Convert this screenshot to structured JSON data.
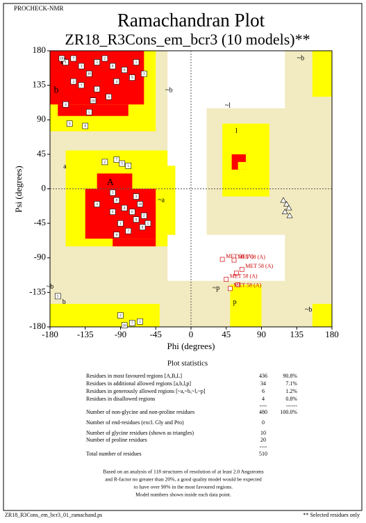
{
  "header": "PROCHECK-NMR",
  "chart_data": {
    "type": "scatter",
    "title": "Ramachandran Plot",
    "subtitle": "ZR18_R3Cons_em_bcr3 (10 models)**",
    "x_label": "Phi (degrees)",
    "y_label": "Psi (degrees)",
    "xlim": [
      -180,
      180
    ],
    "ylim": [
      -180,
      180
    ],
    "xticks": [
      -180,
      -135,
      -90,
      -45,
      0,
      45,
      90,
      135,
      180
    ],
    "yticks": [
      -180,
      -135,
      -90,
      -45,
      0,
      45,
      90,
      135,
      180
    ],
    "region_labels": [
      "B",
      "b",
      "A",
      "a",
      "l",
      "~l",
      "~a",
      "~b",
      "~b",
      "b",
      "p",
      "~p",
      "~b",
      "~b"
    ],
    "series": [
      {
        "marker": "square",
        "color": "#ffffff",
        "x": [
          -160,
          -150,
          -140,
          -130,
          -120,
          -110,
          -100,
          -95,
          -85,
          -75,
          -70,
          -120,
          -140,
          -150,
          -125,
          -105,
          -160,
          -130,
          -155,
          -135,
          -165,
          -60,
          -110,
          -95,
          -88,
          -80,
          -100,
          -95,
          -85,
          -75,
          -70,
          -65,
          -60,
          -55,
          -90,
          -80,
          -100,
          -120,
          -70,
          -62,
          -95,
          -90,
          -75,
          -85,
          -65,
          -170
        ],
        "y": [
          165,
          170,
          160,
          150,
          165,
          170,
          160,
          140,
          155,
          145,
          165,
          130,
          135,
          140,
          115,
          120,
          110,
          100,
          85,
          82,
          170,
          150,
          35,
          38,
          33,
          30,
          -5,
          -15,
          -25,
          -30,
          -40,
          -20,
          -35,
          -45,
          -45,
          -55,
          -30,
          -20,
          -10,
          -50,
          -60,
          -165,
          -175,
          -178,
          -173,
          -140
        ],
        "labels": [
          "1",
          "7",
          "3",
          "10",
          "5",
          "2",
          "8",
          "4",
          "6",
          "9",
          "1",
          "3",
          "7",
          "2",
          "10",
          "6",
          "4",
          "5",
          "9",
          "8",
          "10",
          "3",
          "2",
          "7",
          "5",
          "1",
          "3",
          "8",
          "4",
          "6",
          "9",
          "10",
          "2",
          "5",
          "1",
          "7",
          "6",
          "4",
          "3",
          "8",
          "9",
          "2",
          "7",
          "10",
          "1",
          "5"
        ]
      },
      {
        "marker": "triangle",
        "color": "#ffffff",
        "x": [
          118,
          122,
          125,
          120,
          126
        ],
        "y": [
          -15,
          -20,
          -25,
          -30,
          -35
        ]
      },
      {
        "marker": "square",
        "color": "#cc0000",
        "x": [
          40,
          55,
          58,
          45,
          60,
          50,
          65
        ],
        "y": [
          -92,
          -93,
          -110,
          -118,
          -125,
          -130,
          -105
        ],
        "labels": [
          "MET 58 (A)",
          "MET 58 (A)",
          null,
          "MET 58 (A)",
          null,
          "MET 58 (A)",
          "MET 58 (A)"
        ]
      }
    ]
  },
  "stats": {
    "title": "Plot statistics",
    "rows": [
      {
        "label": "Residues in most favoured regions  [A,B,L]",
        "count": 436,
        "percent": "90.8%"
      },
      {
        "label": "Residues in additional allowed regions  [a,b,l,p]",
        "count": 34,
        "percent": "7.1%"
      },
      {
        "label": "Residues in generously allowed regions  [~a,~b,~l,~p]",
        "count": 6,
        "percent": "1.2%"
      },
      {
        "label": "Residues in disallowed regions",
        "count": 4,
        "percent": "0.8%"
      },
      {
        "count": "----",
        "percent": "------"
      },
      {
        "label": "Number of non-glycine and non-proline residues",
        "count": 480,
        "percent": "100.0%"
      },
      {
        "label": "Number of end-residues (excl. Gly and Pro)",
        "count": 0
      },
      {
        "label": "Number of glycine residues (shown as triangles)",
        "count": 10
      },
      {
        "label": "Number of proline residues",
        "count": 20
      },
      {
        "count": "----"
      },
      {
        "label": "Total number of residues",
        "count": 510
      }
    ],
    "notes": [
      "Based on an analysis of 118 structures of resolution of at least 2.0 Angstroms",
      "and R-factor no greater than 20%, a good quality model would be expected",
      "to have over 90% in the most favoured regions.",
      "Model numbers shown inside each data point."
    ]
  },
  "footer": {
    "left": "ZR18_R3Cons_em_bcr3_01_ramachand.ps",
    "right": "** Selected residues only"
  }
}
